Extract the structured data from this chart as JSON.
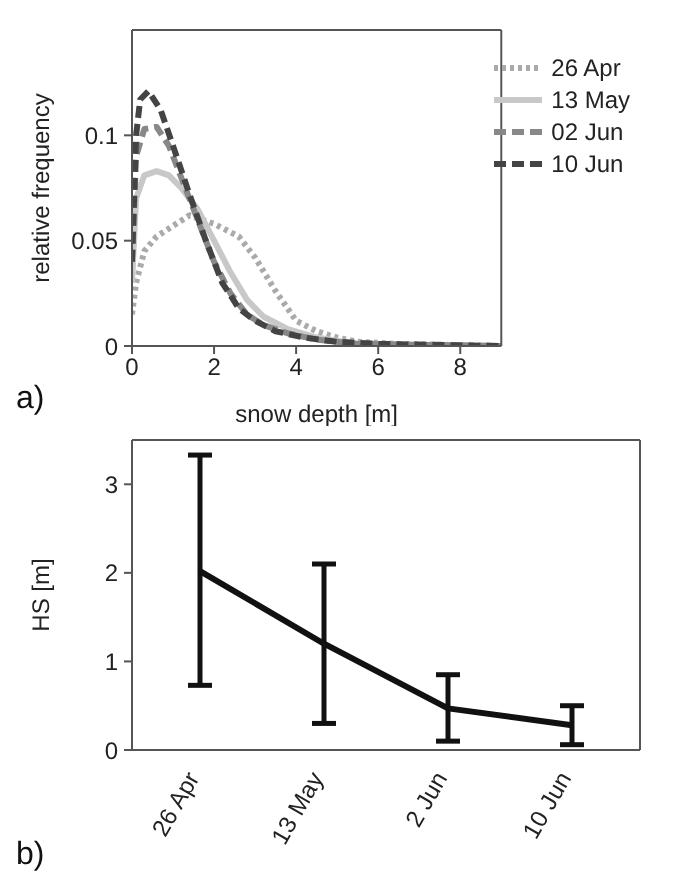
{
  "chart_data": [
    {
      "type": "line",
      "xlabel": "snow depth [m]",
      "ylabel": "relative frequency",
      "xlim": [
        0,
        9
      ],
      "xticks": [
        0,
        2,
        4,
        6,
        8
      ],
      "ylim": [
        0,
        0.15
      ],
      "yticks": [
        0,
        0.05,
        0.1
      ],
      "legend": "top right",
      "annotations": [
        "a)"
      ],
      "series": [
        {
          "name": "26 Apr",
          "color": "#aaaaaa",
          "line_style": "dotted",
          "x": [
            0,
            0.1,
            0.3,
            0.6,
            1,
            1.4,
            2,
            2.6,
            3,
            3.5,
            4,
            4.5,
            5,
            5.5,
            6.5,
            9
          ],
          "values": [
            0.015,
            0.03,
            0.045,
            0.052,
            0.057,
            0.062,
            0.058,
            0.052,
            0.042,
            0.026,
            0.012,
            0.007,
            0.004,
            0.002,
            0.001,
            0
          ]
        },
        {
          "name": "13 May",
          "color": "#c8c8c8",
          "line_style": "solid",
          "x": [
            0,
            0.1,
            0.3,
            0.6,
            0.9,
            1.2,
            1.6,
            2,
            2.4,
            2.8,
            3.2,
            3.8,
            4.5,
            5.5,
            9
          ],
          "values": [
            0.03,
            0.07,
            0.081,
            0.083,
            0.081,
            0.075,
            0.065,
            0.05,
            0.035,
            0.022,
            0.014,
            0.008,
            0.004,
            0.001,
            0
          ]
        },
        {
          "name": "02 Jun",
          "color": "#888888",
          "line_style": "dashed",
          "x": [
            0,
            0.1,
            0.3,
            0.6,
            0.9,
            1.2,
            1.6,
            2,
            2.4,
            2.8,
            3.2,
            3.8,
            4.5,
            5.5,
            9
          ],
          "values": [
            0.04,
            0.09,
            0.103,
            0.104,
            0.095,
            0.08,
            0.06,
            0.04,
            0.025,
            0.015,
            0.01,
            0.006,
            0.003,
            0.001,
            0
          ]
        },
        {
          "name": "10 Jun",
          "color": "#444444",
          "line_style": "dashed",
          "x": [
            0,
            0.1,
            0.2,
            0.4,
            0.7,
            1,
            1.4,
            1.8,
            2.2,
            2.6,
            3,
            3.5,
            4.2,
            5,
            6,
            9
          ],
          "values": [
            0.04,
            0.1,
            0.117,
            0.121,
            0.112,
            0.095,
            0.072,
            0.05,
            0.03,
            0.018,
            0.012,
            0.007,
            0.004,
            0.002,
            0.001,
            0
          ]
        }
      ]
    },
    {
      "type": "line",
      "ylabel": "HS [m]",
      "categories": [
        "26 Apr",
        "13 May",
        "2 Jun",
        "10 Jun"
      ],
      "ylim": [
        0,
        3.5
      ],
      "yticks": [
        0,
        1,
        2,
        3
      ],
      "annotations": [
        "b)"
      ],
      "series": [
        {
          "color": "#111111",
          "values": [
            2.02,
            1.2,
            0.47,
            0.28
          ],
          "errors": [
            [
              0.73,
              3.33
            ],
            [
              0.3,
              2.1
            ],
            [
              0.1,
              0.85
            ],
            [
              0.06,
              0.5
            ]
          ]
        }
      ]
    }
  ]
}
